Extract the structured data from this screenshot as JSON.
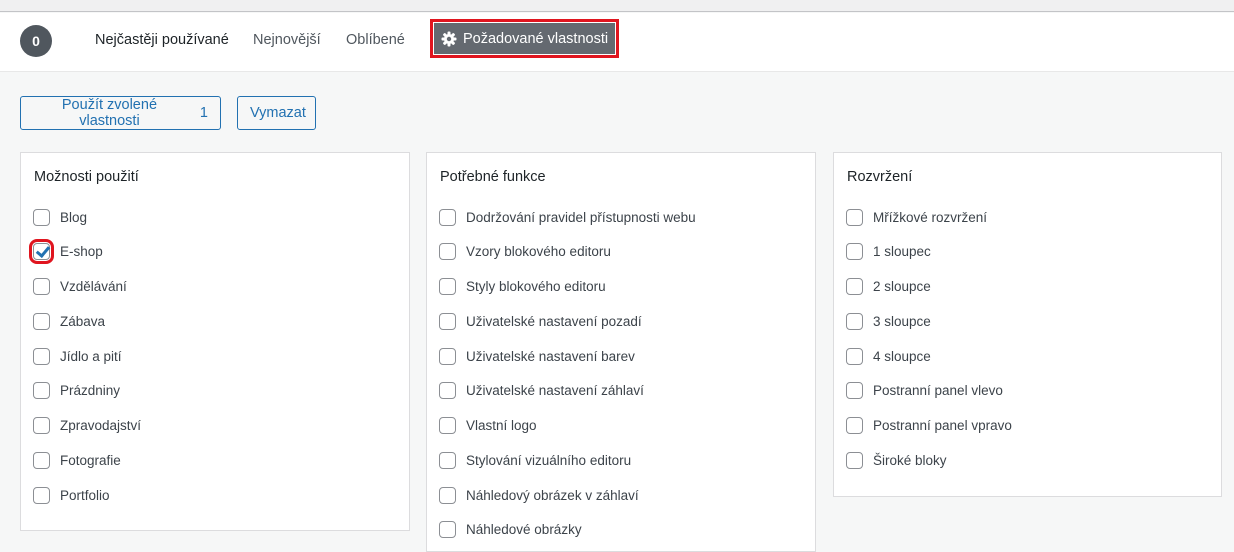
{
  "header": {
    "count": "0",
    "tabs": [
      "Nejčastěji používané",
      "Nejnovější",
      "Oblíbené"
    ],
    "active_tab": "Požadované vlastnosti"
  },
  "actions": {
    "apply_label": "Použít zvolené vlastnosti",
    "apply_count": "1",
    "clear_label": "Vymazat"
  },
  "accent": "#2271b1",
  "panels": [
    {
      "title": "Možnosti použití",
      "items": [
        {
          "label": "Blog",
          "checked": false
        },
        {
          "label": "E-shop",
          "checked": true
        },
        {
          "label": "Vzdělávání",
          "checked": false
        },
        {
          "label": "Zábava",
          "checked": false
        },
        {
          "label": "Jídlo a pití",
          "checked": false
        },
        {
          "label": "Prázdniny",
          "checked": false
        },
        {
          "label": "Zpravodajství",
          "checked": false
        },
        {
          "label": "Fotografie",
          "checked": false
        },
        {
          "label": "Portfolio",
          "checked": false
        }
      ]
    },
    {
      "title": "Potřebné funkce",
      "items": [
        {
          "label": "Dodržování pravidel přístupnosti webu",
          "checked": false
        },
        {
          "label": "Vzory blokového editoru",
          "checked": false
        },
        {
          "label": "Styly blokového editoru",
          "checked": false
        },
        {
          "label": "Uživatelské nastavení pozadí",
          "checked": false
        },
        {
          "label": "Uživatelské nastavení barev",
          "checked": false
        },
        {
          "label": "Uživatelské nastavení záhlaví",
          "checked": false
        },
        {
          "label": "Vlastní logo",
          "checked": false
        },
        {
          "label": "Stylování vizuálního editoru",
          "checked": false
        },
        {
          "label": "Náhledový obrázek v záhlaví",
          "checked": false
        },
        {
          "label": "Náhledové obrázky",
          "checked": false
        }
      ]
    },
    {
      "title": "Rozvržení",
      "items": [
        {
          "label": "Mřížkové rozvržení",
          "checked": false
        },
        {
          "label": "1 sloupec",
          "checked": false
        },
        {
          "label": "2 sloupce",
          "checked": false
        },
        {
          "label": "3 sloupce",
          "checked": false
        },
        {
          "label": "4 sloupce",
          "checked": false
        },
        {
          "label": "Postranní panel vlevo",
          "checked": false
        },
        {
          "label": "Postranní panel vpravo",
          "checked": false
        },
        {
          "label": "Široké bloky",
          "checked": false
        }
      ]
    }
  ]
}
